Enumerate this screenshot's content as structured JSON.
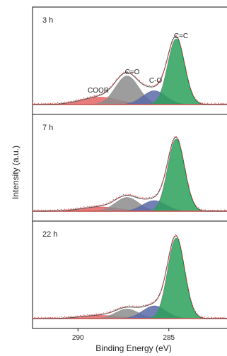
{
  "chart_data": {
    "type": "area",
    "xlabel": "Binding Energy (eV)",
    "ylabel": "Intensity (a.u.)",
    "x_reversed": true,
    "xlim": [
      292.5,
      281.8
    ],
    "x_ticks": [
      290,
      285
    ],
    "x_tick_labels": [
      "290",
      "285"
    ],
    "component_colors": {
      "C=C": "#2ca05a",
      "C-O": "#5a6aa8",
      "C=O": "#8c8c8c",
      "COOR": "#e05050",
      "envelope": "#555555",
      "raw": "#d43030"
    },
    "panels": [
      {
        "label": "3 h",
        "peak_labels": [
          "COOR",
          "C=O",
          "C-O",
          "C=C"
        ],
        "components": [
          {
            "name": "C=C",
            "center": 284.6,
            "amplitude": 0.62,
            "fwhm": 1.1
          },
          {
            "name": "C-O",
            "center": 285.8,
            "amplitude": 0.13,
            "fwhm": 1.5
          },
          {
            "name": "C=O",
            "center": 287.3,
            "amplitude": 0.27,
            "fwhm": 1.5
          },
          {
            "name": "COOR",
            "center": 288.8,
            "amplitude": 0.07,
            "fwhm": 2.4
          }
        ]
      },
      {
        "label": "7 h",
        "peak_labels": [],
        "components": [
          {
            "name": "C=C",
            "center": 284.6,
            "amplitude": 0.68,
            "fwhm": 1.1
          },
          {
            "name": "C-O",
            "center": 285.8,
            "amplitude": 0.1,
            "fwhm": 1.5
          },
          {
            "name": "C=O",
            "center": 287.3,
            "amplitude": 0.13,
            "fwhm": 1.5
          },
          {
            "name": "COOR",
            "center": 288.8,
            "amplitude": 0.04,
            "fwhm": 2.4
          }
        ]
      },
      {
        "label": "22 h",
        "peak_labels": [],
        "components": [
          {
            "name": "C=C",
            "center": 284.6,
            "amplitude": 0.76,
            "fwhm": 1.1
          },
          {
            "name": "C-O",
            "center": 285.8,
            "amplitude": 0.12,
            "fwhm": 1.5
          },
          {
            "name": "C=O",
            "center": 287.3,
            "amplitude": 0.09,
            "fwhm": 1.5
          },
          {
            "name": "COOR",
            "center": 288.8,
            "amplitude": 0.03,
            "fwhm": 2.4
          }
        ]
      }
    ]
  }
}
